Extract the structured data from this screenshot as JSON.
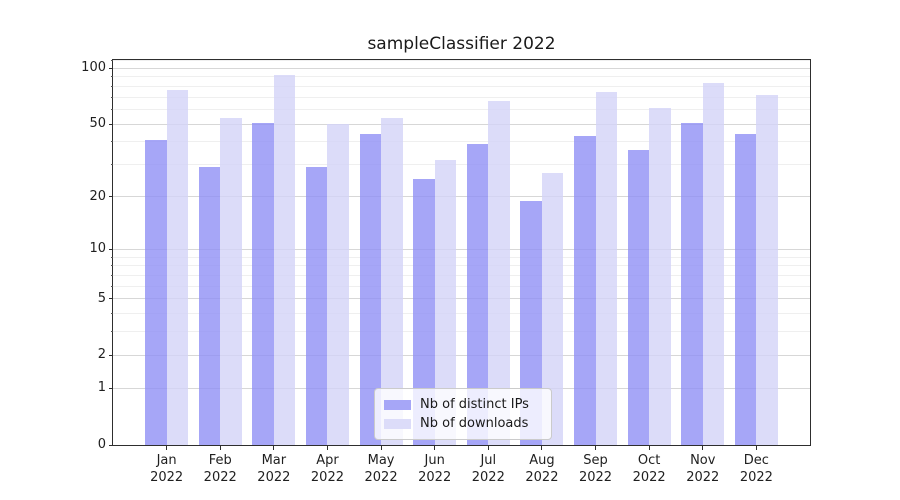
{
  "chart_data": {
    "type": "bar",
    "title": "sampleClassifier 2022",
    "categories": [
      "Jan 2022",
      "Feb 2022",
      "Mar 2022",
      "Apr 2022",
      "May 2022",
      "Jun 2022",
      "Jul 2022",
      "Aug 2022",
      "Sep 2022",
      "Oct 2022",
      "Nov 2022",
      "Dec 2022"
    ],
    "series": [
      {
        "name": "Nb of distinct IPs",
        "color": "#a6a6f7",
        "fill": "rgba(144,144,245,0.8)",
        "values": [
          41,
          29,
          51,
          29,
          44,
          25,
          39,
          19,
          43,
          36,
          51,
          44
        ]
      },
      {
        "name": "Nb of downloads",
        "color": "#dcdcf9",
        "fill": "rgba(211,211,247,0.8)",
        "values": [
          77,
          54,
          92,
          50,
          54,
          32,
          67,
          27,
          75,
          61,
          84,
          72
        ]
      }
    ],
    "xlabel": "",
    "ylabel": "",
    "y_scale": "log1p",
    "y_axis_max": 111,
    "y_ticks": [
      0,
      1,
      2,
      5,
      10,
      20,
      50,
      100
    ],
    "y_minor_ticks": [
      3,
      4,
      6,
      7,
      8,
      9,
      30,
      40,
      60,
      70,
      80,
      90,
      110
    ],
    "grid": true,
    "legend_position": "lower center"
  },
  "colors": {
    "background": "#ffffff",
    "spine": "#2e2e2e",
    "grid_major": "#d7d7d7",
    "grid_minor": "#efefef",
    "text": "#1a1a1a"
  }
}
